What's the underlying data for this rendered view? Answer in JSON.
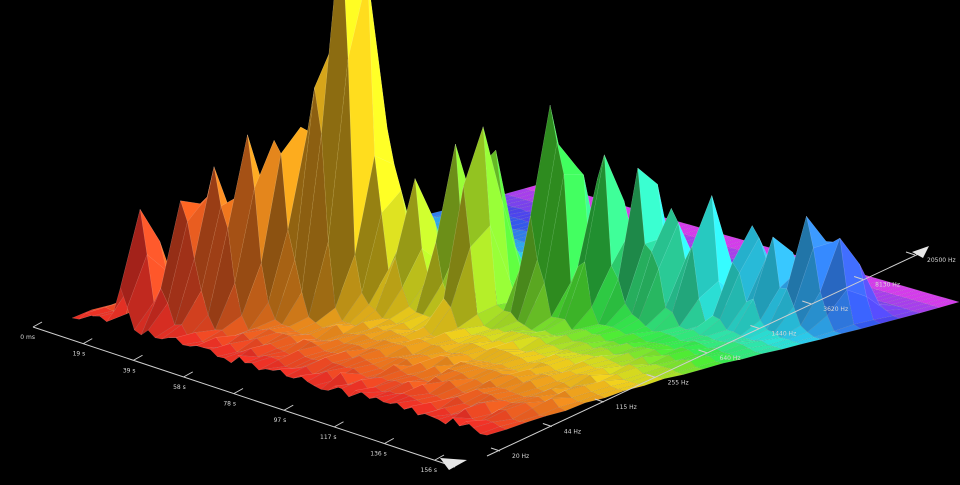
{
  "chart_data": {
    "type": "surface-3d",
    "title": "",
    "x_axis": {
      "name": "",
      "ticks": [
        "0 ms",
        "19 s",
        "39 s",
        "58 s",
        "78 s",
        "97 s",
        "117 s",
        "136 s",
        "156 s"
      ]
    },
    "y_axis": {
      "name": "",
      "scale": "log",
      "ticks": [
        "20 Hz",
        "44 Hz",
        "115 Hz",
        "255 Hz",
        "640 Hz",
        "1440 Hz",
        "3620 Hz",
        "8130 Hz",
        "20500 Hz"
      ]
    },
    "z_axis": {
      "name": "",
      "range": [
        0,
        1
      ]
    },
    "colormap": [
      "#ff2a2a",
      "#ff8a1f",
      "#ffe81e",
      "#3cff3c",
      "#2df0ff",
      "#3a4bff",
      "#ff40ff"
    ],
    "grid_cols": 60,
    "grid_rows": 24,
    "peaks": [
      {
        "t": 0.12,
        "f": 0.05,
        "h": 0.42
      },
      {
        "t": 0.17,
        "f": 0.1,
        "h": 0.52
      },
      {
        "t": 0.2,
        "f": 0.13,
        "h": 0.5
      },
      {
        "t": 0.23,
        "f": 0.16,
        "h": 0.55
      },
      {
        "t": 0.25,
        "f": 0.2,
        "h": 0.45
      },
      {
        "t": 0.27,
        "f": 0.24,
        "h": 0.62
      },
      {
        "t": 0.3,
        "f": 0.27,
        "h": 0.8
      },
      {
        "t": 0.32,
        "f": 0.3,
        "h": 1.0
      },
      {
        "t": 0.33,
        "f": 0.34,
        "h": 0.85
      },
      {
        "t": 0.36,
        "f": 0.36,
        "h": 0.5
      },
      {
        "t": 0.4,
        "f": 0.38,
        "h": 0.48
      },
      {
        "t": 0.45,
        "f": 0.42,
        "h": 0.6
      },
      {
        "t": 0.5,
        "f": 0.45,
        "h": 0.55
      },
      {
        "t": 0.52,
        "f": 0.4,
        "h": 0.62
      },
      {
        "t": 0.58,
        "f": 0.5,
        "h": 0.72
      },
      {
        "t": 0.61,
        "f": 0.52,
        "h": 0.68
      },
      {
        "t": 0.66,
        "f": 0.55,
        "h": 0.7
      },
      {
        "t": 0.7,
        "f": 0.6,
        "h": 0.6
      },
      {
        "t": 0.74,
        "f": 0.62,
        "h": 0.45
      },
      {
        "t": 0.78,
        "f": 0.66,
        "h": 0.48
      },
      {
        "t": 0.84,
        "f": 0.7,
        "h": 0.4
      },
      {
        "t": 0.88,
        "f": 0.72,
        "h": 0.35
      },
      {
        "t": 0.92,
        "f": 0.76,
        "h": 0.42
      },
      {
        "t": 0.95,
        "f": 0.8,
        "h": 0.3
      }
    ]
  }
}
